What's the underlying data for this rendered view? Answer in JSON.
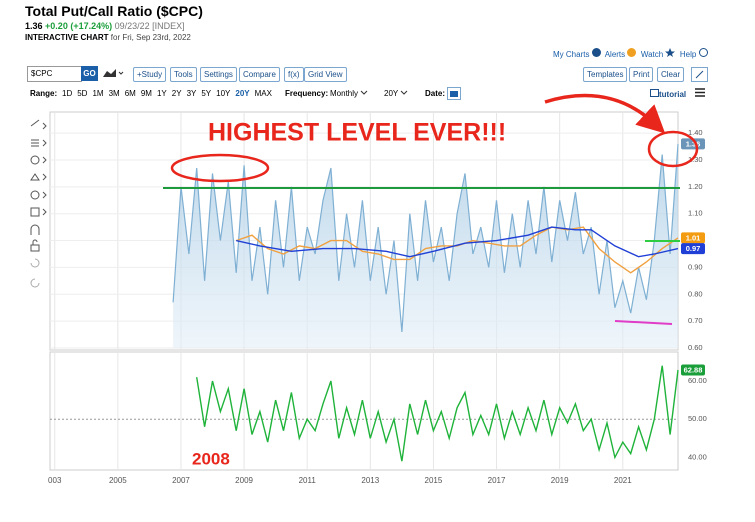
{
  "header": {
    "title": "Total Put/Call Ratio ($CPC)",
    "last": "1.36",
    "change": "+0.20 (+17.24%)",
    "date": "09/23/22 [INDEX]",
    "chart_label": "INTERACTIVE CHART",
    "chart_date": "for Fri, Sep 23rd, 2022"
  },
  "links": [
    "My Charts",
    "Alerts",
    "Watch",
    "Help"
  ],
  "toolbar": {
    "symbol": "$CPC",
    "go": "GO",
    "buttons": [
      "+Study",
      "Tools",
      "Settings",
      "Compare",
      "f(x)",
      "Grid View"
    ],
    "right_buttons": [
      "Templates",
      "Print",
      "Clear"
    ]
  },
  "range_bar": {
    "label": "Range:",
    "options": [
      "1D",
      "5D",
      "1M",
      "3M",
      "6M",
      "9M",
      "1Y",
      "2Y",
      "3Y",
      "5Y",
      "10Y",
      "20Y",
      "MAX"
    ],
    "active": "20Y",
    "frequency_label": "Frequency:",
    "frequency": "Monthly",
    "period": "20Y",
    "date_label": "Date:",
    "tutorial": "tutorial"
  },
  "chart_data": [
    {
      "type": "line",
      "annotation": "HIGHEST LEVEL EVER!!!",
      "xlim": [
        2002.85,
        2022.75
      ],
      "ylim": [
        0.6,
        1.46
      ],
      "yticks": [
        {
          "value": 0.6,
          "label": "0.60"
        },
        {
          "value": 0.7,
          "label": "0.70"
        },
        {
          "value": 0.8,
          "label": "0.80"
        },
        {
          "value": 0.9,
          "label": "0.90"
        },
        {
          "value": 1.0,
          "label": "1.00"
        },
        {
          "value": 1.1,
          "label": "1.10"
        },
        {
          "value": 1.2,
          "label": "1.20"
        },
        {
          "value": 1.3,
          "label": "1.30"
        },
        {
          "value": 1.4,
          "label": "1.40"
        }
      ],
      "grid": true,
      "series": [
        {
          "color": "#7fb0d3",
          "area": true,
          "badge_color": "#6b95b8",
          "x": [
            2006.75,
            2007,
            2007.25,
            2007.5,
            2007.75,
            2008,
            2008.25,
            2008.5,
            2008.75,
            2009,
            2009.25,
            2009.5,
            2009.75,
            2010,
            2010.25,
            2010.5,
            2010.75,
            2011,
            2011.25,
            2011.5,
            2011.75,
            2012,
            2012.25,
            2012.5,
            2012.75,
            2013,
            2013.25,
            2013.5,
            2013.75,
            2014,
            2014.25,
            2014.5,
            2014.75,
            2015,
            2015.25,
            2015.5,
            2015.75,
            2016,
            2016.25,
            2016.5,
            2016.75,
            2017,
            2017.25,
            2017.5,
            2017.75,
            2018,
            2018.25,
            2018.5,
            2018.75,
            2019,
            2019.25,
            2019.5,
            2019.75,
            2020,
            2020.25,
            2020.5,
            2020.75,
            2021,
            2021.25,
            2021.5,
            2021.75,
            2022,
            2022.25,
            2022.5,
            2022.75
          ],
          "values": [
            0.77,
            1.2,
            0.95,
            1.27,
            0.85,
            1.25,
            1.0,
            1.22,
            0.88,
            1.28,
            0.85,
            1.05,
            0.8,
            1.15,
            0.9,
            1.2,
            0.85,
            1.05,
            0.95,
            1.15,
            1.27,
            0.85,
            1.1,
            0.9,
            1.15,
            0.85,
            1.05,
            0.8,
            1.0,
            0.66,
            1.1,
            0.85,
            1.15,
            0.92,
            1.05,
            0.85,
            1.1,
            1.25,
            0.95,
            1.05,
            0.9,
            1.15,
            0.88,
            1.1,
            0.9,
            1.15,
            0.95,
            1.2,
            0.92,
            1.15,
            1.0,
            1.18,
            0.95,
            1.05,
            0.8,
            1.0,
            0.75,
            0.85,
            0.73,
            0.9,
            0.78,
            1.0,
            1.32,
            0.95,
            1.36
          ]
        },
        {
          "color": "#f0a040",
          "badge_color": "#f39c12",
          "x": [
            2008.75,
            2009.25,
            2009.75,
            2010.25,
            2010.75,
            2011.25,
            2011.75,
            2012.25,
            2012.75,
            2013.25,
            2013.75,
            2014.25,
            2014.75,
            2015.25,
            2015.75,
            2016.25,
            2016.75,
            2017.25,
            2017.75,
            2018.25,
            2018.75,
            2019.25,
            2019.75,
            2020.25,
            2020.75,
            2021.25,
            2021.75,
            2022.25,
            2022.75
          ],
          "values": [
            1.0,
            1.02,
            0.97,
            0.95,
            0.98,
            0.97,
            1.0,
            1.0,
            0.96,
            0.95,
            0.93,
            0.93,
            0.97,
            0.98,
            0.98,
            1.0,
            0.99,
            0.98,
            0.98,
            1.02,
            1.05,
            1.04,
            1.05,
            0.97,
            0.92,
            0.88,
            0.92,
            0.97,
            1.01
          ]
        },
        {
          "color": "#1f3fd6",
          "badge_color": "#1f3fd6",
          "x": [
            2008.75,
            2009.5,
            2010.5,
            2011.5,
            2012.5,
            2013.5,
            2014.25,
            2015,
            2016,
            2017,
            2018,
            2018.75,
            2019.5,
            2020,
            2020.75,
            2021.5,
            2022,
            2022.75
          ],
          "values": [
            1.0,
            0.98,
            0.96,
            0.97,
            0.97,
            0.96,
            0.94,
            0.96,
            0.99,
            1.0,
            1.02,
            1.05,
            1.04,
            1.04,
            0.98,
            0.94,
            0.95,
            0.97
          ]
        }
      ]
    },
    {
      "type": "line",
      "annotation": "2008",
      "xlim": [
        2002.85,
        2022.75
      ],
      "ylim": [
        36.7,
        67.6
      ],
      "yticks": [
        {
          "value": 40,
          "label": "40.00"
        },
        {
          "value": 50,
          "label": "50.00"
        },
        {
          "value": 60,
          "label": "60.00"
        }
      ],
      "dashed_line": 50,
      "xticks": [
        {
          "value": 2003,
          "label": "003"
        },
        2005,
        2007,
        2009,
        2011,
        2013,
        2015,
        2017,
        2019,
        2021
      ],
      "series": [
        {
          "color": "#1fb33a",
          "badge_color": "#1a9e3a",
          "x": [
            2007.5,
            2007.75,
            2008,
            2008.25,
            2008.5,
            2008.75,
            2009,
            2009.25,
            2009.5,
            2009.75,
            2010,
            2010.25,
            2010.5,
            2010.75,
            2011,
            2011.25,
            2011.5,
            2011.75,
            2012,
            2012.25,
            2012.5,
            2012.75,
            2013,
            2013.25,
            2013.5,
            2013.75,
            2014,
            2014.25,
            2014.5,
            2014.75,
            2015,
            2015.25,
            2015.5,
            2015.75,
            2016,
            2016.25,
            2016.5,
            2016.75,
            2017,
            2017.25,
            2017.5,
            2017.75,
            2018,
            2018.25,
            2018.5,
            2018.75,
            2019,
            2019.25,
            2019.5,
            2019.75,
            2020,
            2020.25,
            2020.5,
            2020.75,
            2021,
            2021.25,
            2021.5,
            2021.75,
            2022,
            2022.25,
            2022.5,
            2022.75
          ],
          "values": [
            61,
            48,
            60,
            52,
            58,
            47,
            58,
            46,
            52,
            44,
            55,
            47,
            57,
            45,
            50,
            47,
            54,
            60,
            45,
            53,
            46,
            55,
            45,
            52,
            44,
            50,
            39,
            54,
            46,
            55,
            47,
            52,
            45,
            53,
            57,
            46,
            51,
            46,
            54,
            45,
            52,
            46,
            53,
            47,
            55,
            46,
            53,
            49,
            54,
            47,
            50,
            42,
            49,
            40,
            44,
            41,
            48,
            42,
            50,
            64,
            46,
            62.88
          ]
        }
      ]
    }
  ]
}
